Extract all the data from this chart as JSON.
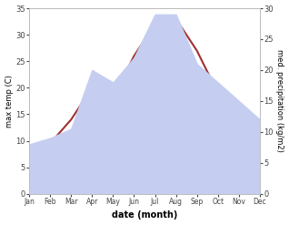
{
  "months": [
    "Jan",
    "Feb",
    "Mar",
    "Apr",
    "May",
    "Jun",
    "Jul",
    "Aug",
    "Sep",
    "Oct",
    "Nov",
    "Dec"
  ],
  "temp": [
    7.5,
    9.5,
    14.0,
    20.0,
    18.0,
    26.0,
    32.0,
    33.0,
    27.0,
    19.0,
    11.0,
    10.5
  ],
  "precip": [
    8.0,
    9.0,
    10.5,
    20.0,
    18.0,
    22.0,
    29.0,
    29.0,
    21.0,
    18.0,
    15.0,
    12.0
  ],
  "temp_color": "#a03030",
  "precip_fill_color": "#c5cef0",
  "ylim_left": [
    0,
    35
  ],
  "ylim_right": [
    0,
    30
  ],
  "yticks_left": [
    0,
    5,
    10,
    15,
    20,
    25,
    30,
    35
  ],
  "yticks_right": [
    0,
    5,
    10,
    15,
    20,
    25,
    30
  ],
  "ylabel_left": "max temp (C)",
  "ylabel_right": "med. precipitation (kg/m2)",
  "xlabel": "date (month)",
  "bg_color": "#ffffff"
}
